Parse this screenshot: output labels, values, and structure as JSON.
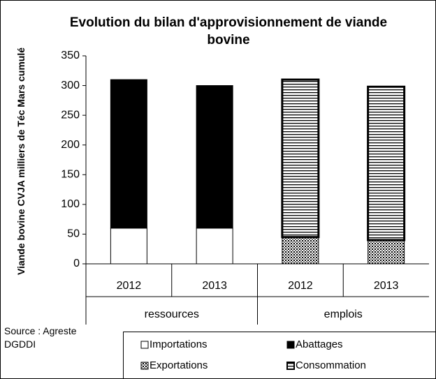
{
  "chart_data": {
    "type": "bar",
    "stacked": true,
    "title": "Evolution du bilan d'approvisionnement de viande bovine",
    "ylabel": "Viande bovine CVJA milliers de Téc Mars cumulé",
    "source": "Source : Agreste DGDDI",
    "groups": [
      {
        "name": "ressources",
        "span": 2
      },
      {
        "name": "emplois",
        "span": 2
      }
    ],
    "categories": [
      "2012",
      "2013",
      "2012",
      "2013"
    ],
    "series": [
      {
        "name": "Importations",
        "color": "#ffffff",
        "values": [
          60,
          60,
          null,
          null
        ]
      },
      {
        "name": "Abattages",
        "color": "#000000",
        "values": [
          250,
          240,
          null,
          null
        ]
      },
      {
        "name": "Exportations",
        "color": "#000000",
        "pattern": "dots",
        "values": [
          null,
          null,
          45,
          40
        ]
      },
      {
        "name": "Consommation",
        "color": "#000000",
        "pattern": "stripes",
        "values": [
          null,
          null,
          265,
          258
        ]
      }
    ],
    "ylim": [
      0,
      350
    ],
    "yticks": [
      0,
      50,
      100,
      150,
      200,
      250,
      300,
      350
    ],
    "grid": false
  }
}
